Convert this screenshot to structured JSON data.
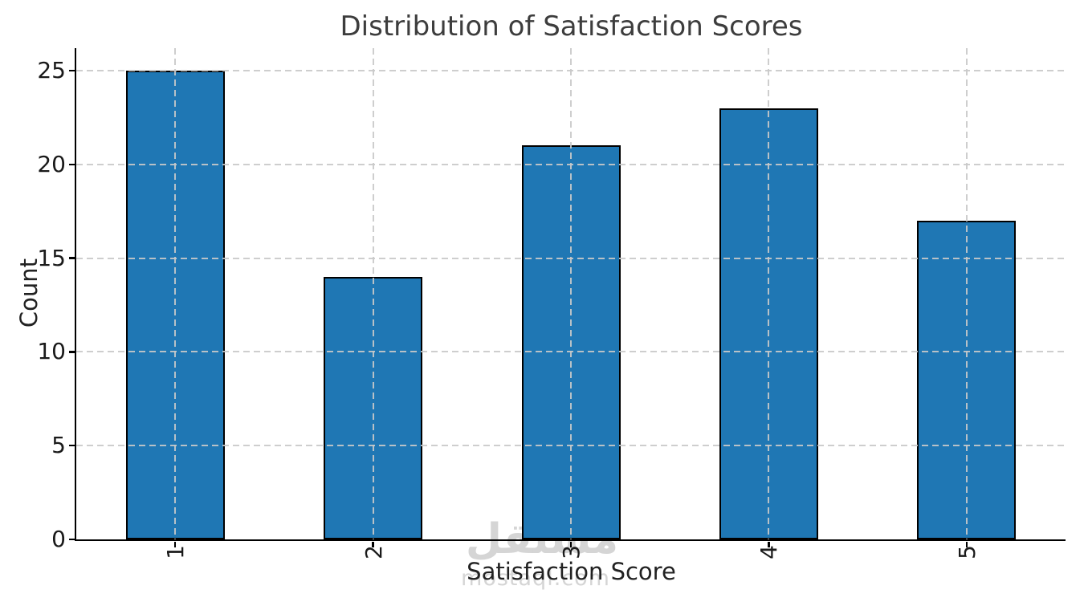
{
  "figure": {
    "background": "#ffffff"
  },
  "chart_data": {
    "type": "bar",
    "title": "Distribution of Satisfaction Scores",
    "xlabel": "Satisfaction Score",
    "ylabel": "Count",
    "categories": [
      "1",
      "2",
      "3",
      "4",
      "5"
    ],
    "values": [
      25,
      14,
      21,
      23,
      17
    ],
    "yticks": [
      0,
      5,
      10,
      15,
      20,
      25
    ],
    "ylim": [
      0,
      26.2
    ],
    "xtick_rotation": 90,
    "grid": true,
    "grid_style": "dashed",
    "grid_above_bars": true,
    "legend_position": "none",
    "bar_color": "#1f77b4",
    "bar_edge_color": "#000000",
    "grid_color": "#c9c9c9",
    "axis_color": "#000000",
    "title_color": "#3d3d3d",
    "label_color": "#222222",
    "tick_color": "#1a1a1a"
  },
  "watermark": {
    "logo_text": "مستقل",
    "domain_text": "mostaql.com",
    "color": "#d5d5d5"
  }
}
